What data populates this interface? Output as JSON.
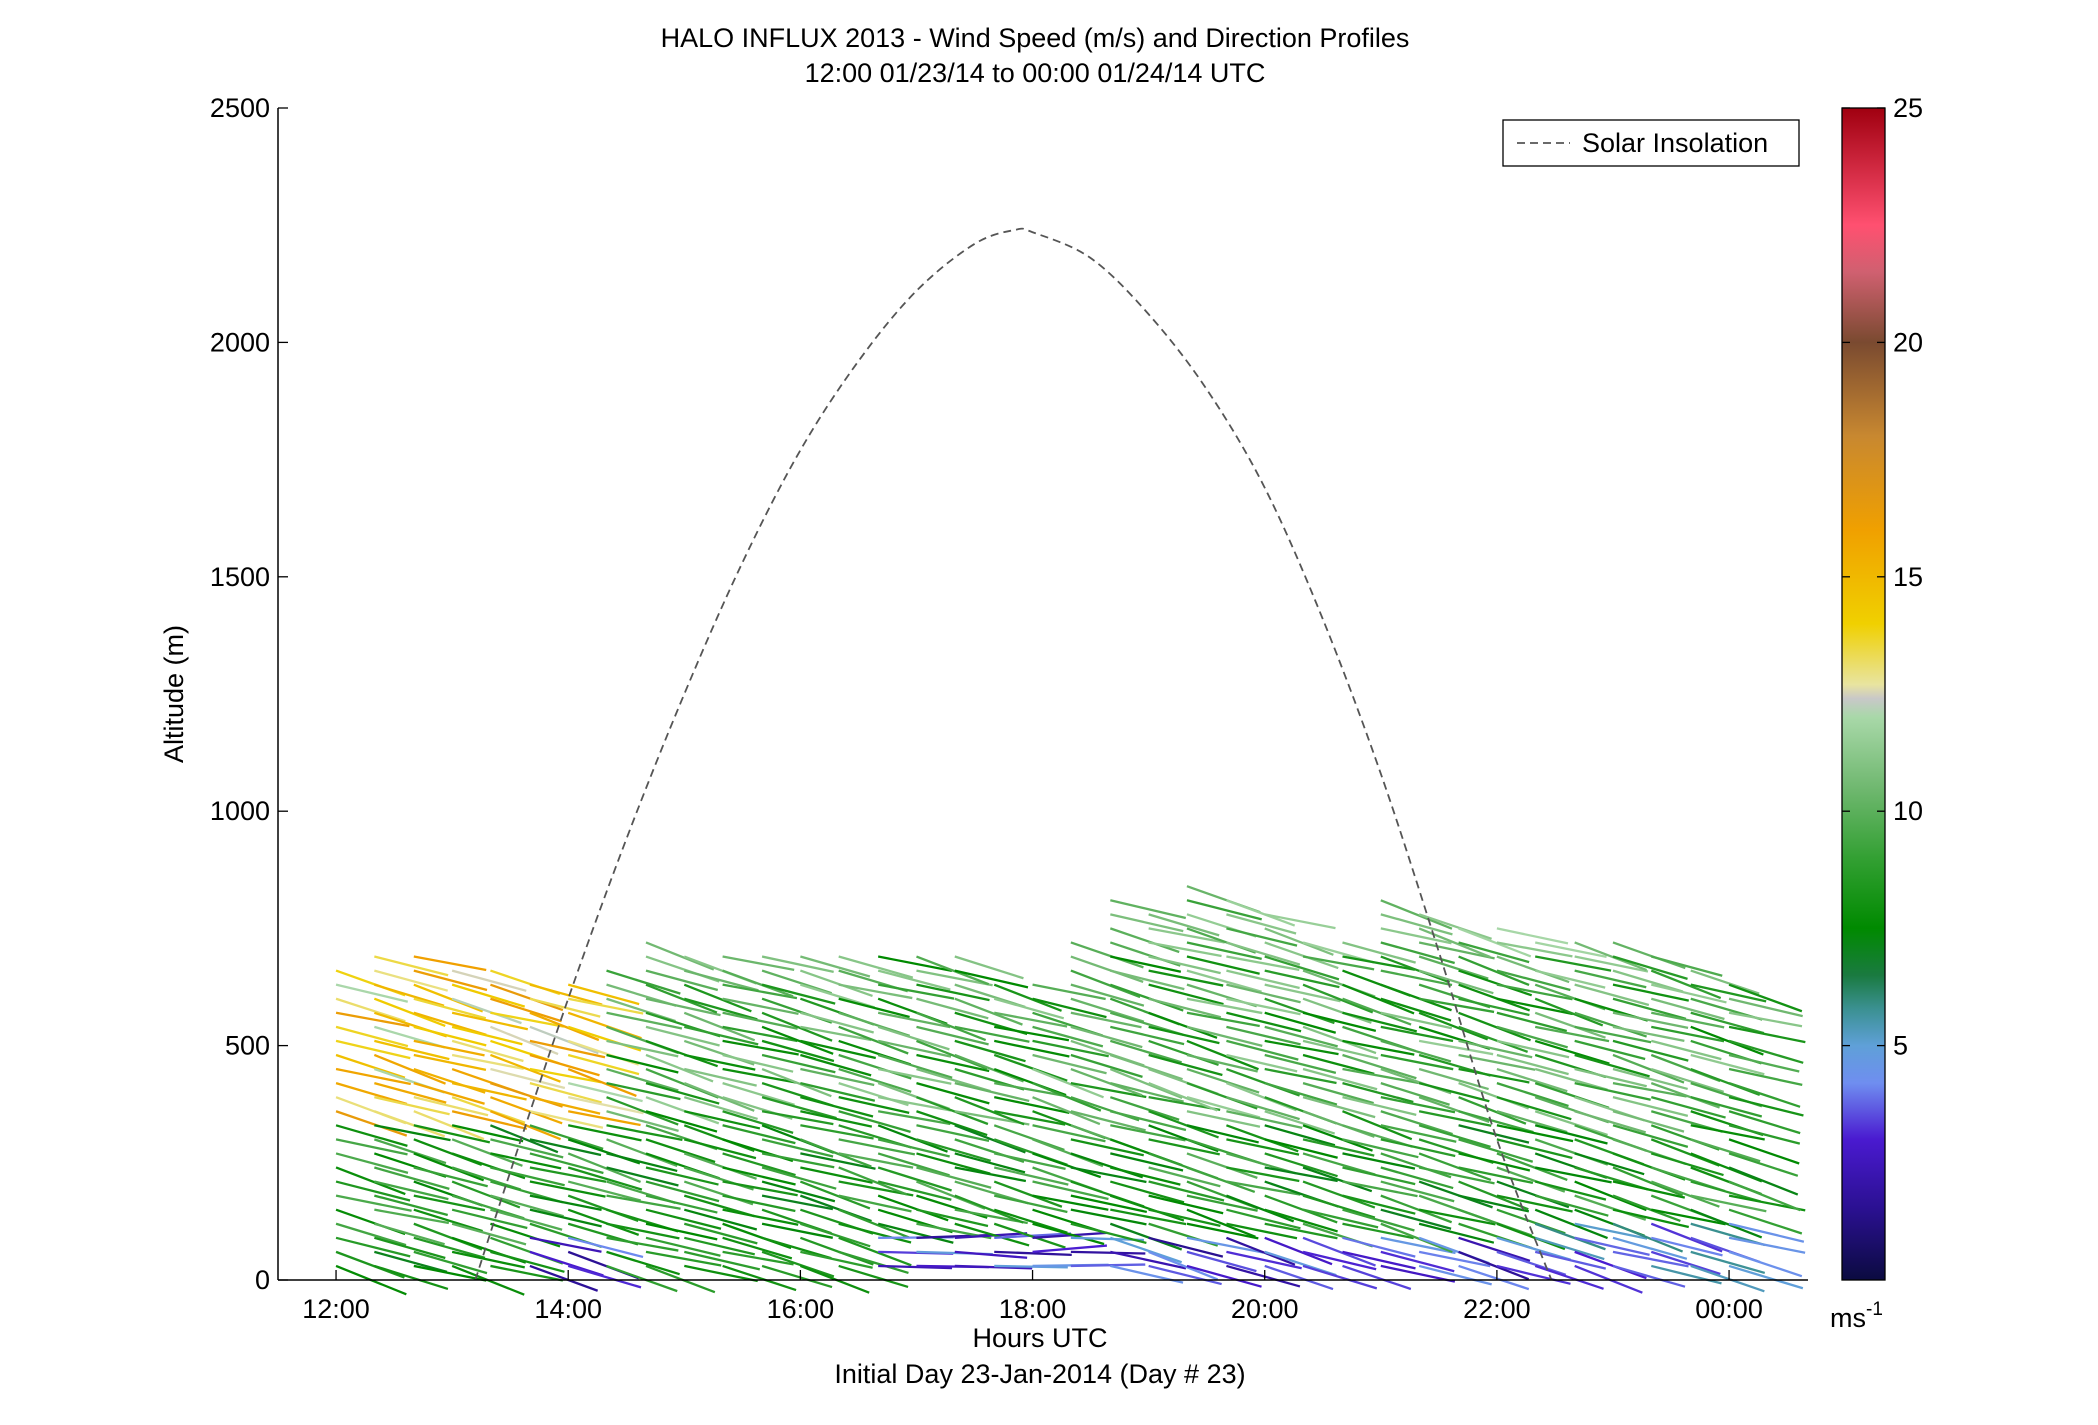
{
  "chart_data": {
    "type": "scatter",
    "title": "HALO INFLUX 2013 - Wind Speed (m/s) and Direction Profiles",
    "subtitle": "12:00 01/23/14 to 00:00 01/24/14  UTC",
    "xlabel": "Hours UTC",
    "xlabel2": "Initial Day 23-Jan-2014 (Day # 23)",
    "ylabel": "Altitude (m)",
    "x_range_hours": [
      11.5,
      24.68
    ],
    "ylim": [
      0,
      2500
    ],
    "x_ticks": [
      {
        "hour": 12,
        "label": "12:00"
      },
      {
        "hour": 14,
        "label": "14:00"
      },
      {
        "hour": 16,
        "label": "16:00"
      },
      {
        "hour": 18,
        "label": "18:00"
      },
      {
        "hour": 20,
        "label": "20:00"
      },
      {
        "hour": 22,
        "label": "22:00"
      },
      {
        "hour": 24,
        "label": "00:00"
      }
    ],
    "y_ticks": [
      {
        "value": 0,
        "label": "0"
      },
      {
        "value": 500,
        "label": "500"
      },
      {
        "value": 1000,
        "label": "1000"
      },
      {
        "value": 1500,
        "label": "1500"
      },
      {
        "value": 2000,
        "label": "2000"
      },
      {
        "value": 2500,
        "label": "2500"
      }
    ],
    "legend": {
      "label": "Solar Insolation",
      "placement": "top-right",
      "color": "#555555",
      "style": "dashed"
    },
    "solar_insolation": {
      "x": [
        13.2,
        13.5,
        14.0,
        14.5,
        15.0,
        15.5,
        16.0,
        16.5,
        17.0,
        17.5,
        17.85,
        18.0,
        18.5,
        19.0,
        19.5,
        20.0,
        20.5,
        21.0,
        21.5,
        22.0,
        22.47
      ],
      "y": [
        0,
        230,
        600,
        940,
        1250,
        1530,
        1770,
        1960,
        2110,
        2210,
        2240,
        2235,
        2180,
        2060,
        1900,
        1690,
        1410,
        1080,
        700,
        300,
        0
      ]
    },
    "colorbar": {
      "min": 0,
      "max": 25,
      "ticks": [
        5,
        10,
        15,
        20,
        25
      ],
      "unit_label": "ms",
      "unit_exponent": "-1",
      "stops": [
        {
          "v": 0,
          "c": "#0b0b40"
        },
        {
          "v": 1.5,
          "c": "#2a1090"
        },
        {
          "v": 3,
          "c": "#4a1ad0"
        },
        {
          "v": 4.2,
          "c": "#6f8ef0"
        },
        {
          "v": 5,
          "c": "#5fa0d8"
        },
        {
          "v": 5.8,
          "c": "#3a9090"
        },
        {
          "v": 6.5,
          "c": "#1a7a40"
        },
        {
          "v": 7.5,
          "c": "#008a00"
        },
        {
          "v": 9,
          "c": "#33a033"
        },
        {
          "v": 10.5,
          "c": "#70b870"
        },
        {
          "v": 12,
          "c": "#a8d8a8"
        },
        {
          "v": 12.4,
          "c": "#c8c8c8"
        },
        {
          "v": 12.7,
          "c": "#e8e4a0"
        },
        {
          "v": 14,
          "c": "#f0d000"
        },
        {
          "v": 16,
          "c": "#f0a000"
        },
        {
          "v": 18,
          "c": "#c88830"
        },
        {
          "v": 20,
          "c": "#7a4a30"
        },
        {
          "v": 21.5,
          "c": "#d06070"
        },
        {
          "v": 22.5,
          "c": "#ff5070"
        },
        {
          "v": 25,
          "c": "#a00010"
        }
      ]
    },
    "wind_barbs": {
      "description_profile_hours": [
        12,
        12.33,
        12.67,
        13,
        13.33,
        13.67,
        14,
        14.33,
        14.67,
        15,
        15.33,
        15.67,
        16,
        16.33,
        16.67,
        17,
        17.33,
        17.67,
        18,
        18.33,
        18.67,
        19,
        19.33,
        19.67,
        20,
        20.33,
        20.67,
        21,
        21.33,
        21.67,
        22,
        22.33,
        22.67,
        23,
        23.33,
        23.67,
        24
      ],
      "profile_top_m": [
        660,
        690,
        690,
        680,
        660,
        650,
        640,
        660,
        720,
        700,
        700,
        690,
        690,
        690,
        700,
        700,
        700,
        640,
        650,
        730,
        810,
        800,
        840,
        820,
        780,
        730,
        720,
        810,
        780,
        760,
        750,
        740,
        740,
        720,
        700,
        670,
        640
      ],
      "speed_ms_by_altitude_band": [
        {
          "alt_m": [
            0,
            100
          ],
          "speed_ms": 2.5
        },
        {
          "alt_m": [
            100,
            350
          ],
          "speed_ms": 9.0
        },
        {
          "alt_m": [
            350,
            700
          ],
          "speed_ms": 9.5
        },
        {
          "alt_m": [
            350,
            700
          ],
          "speed_ms": 15.0,
          "hours": [
            12,
            14.3
          ]
        },
        {
          "alt_m": [
            700,
            850
          ],
          "speed_ms": 10.5
        }
      ],
      "direction": "mostly easterly (barbs tilted down to the right)"
    }
  }
}
